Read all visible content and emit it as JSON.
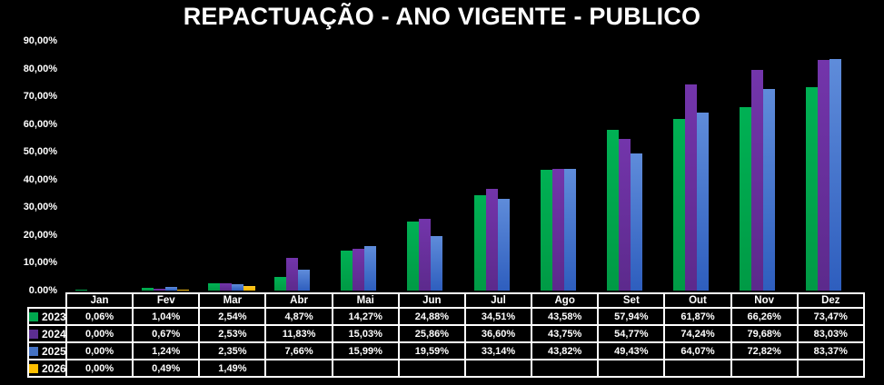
{
  "title": "REPACTUAÇÃO - ANO VIGENTE - PUBLICO",
  "colors": {
    "background": "#000000",
    "text": "#FFFFFF",
    "table_border": "#FFFFFF"
  },
  "chart_data": {
    "type": "bar",
    "title": "REPACTUAÇÃO - ANO VIGENTE - PUBLICO",
    "categories": [
      "Jan",
      "Fev",
      "Mar",
      "Abr",
      "Mai",
      "Jun",
      "Jul",
      "Ago",
      "Set",
      "Out",
      "Nov",
      "Dez"
    ],
    "series": [
      {
        "name": "2023",
        "legend_color": "#00A84E",
        "color_top": "#00B154",
        "color_bottom": "#009A45",
        "values": [
          0.06,
          1.04,
          2.54,
          4.87,
          14.27,
          24.88,
          34.51,
          43.58,
          57.94,
          61.87,
          66.26,
          73.47
        ],
        "labels": [
          "0,06%",
          "1,04%",
          "2,54%",
          "4,87%",
          "14,27%",
          "24,88%",
          "34,51%",
          "43,58%",
          "57,94%",
          "61,87%",
          "66,26%",
          "73,47%"
        ]
      },
      {
        "name": "2024",
        "legend_color": "#5C2D91",
        "color_top": "#7335AB",
        "color_bottom": "#5C2A8C",
        "values": [
          0.0,
          0.67,
          2.53,
          11.83,
          15.03,
          25.86,
          36.6,
          43.75,
          54.77,
          74.24,
          79.68,
          83.03
        ],
        "labels": [
          "0,00%",
          "0,67%",
          "2,53%",
          "11,83%",
          "15,03%",
          "25,86%",
          "36,60%",
          "43,75%",
          "54,77%",
          "74,24%",
          "79,68%",
          "83,03%"
        ]
      },
      {
        "name": "2025",
        "legend_color": "#4472C4",
        "color_top": "#5F8CDA",
        "color_bottom": "#2E5EBE",
        "values": [
          0.0,
          1.24,
          2.35,
          7.66,
          15.99,
          19.59,
          33.14,
          43.82,
          49.43,
          64.07,
          72.82,
          83.37
        ],
        "labels": [
          "0,00%",
          "1,24%",
          "2,35%",
          "7,66%",
          "15,99%",
          "19,59%",
          "33,14%",
          "43,82%",
          "49,43%",
          "64,07%",
          "72,82%",
          "83,37%"
        ]
      },
      {
        "name": "2026",
        "legend_color": "#FFC000",
        "color_top": "#FFC927",
        "color_bottom": "#F3B500",
        "values": [
          0.0,
          0.49,
          1.49,
          null,
          null,
          null,
          null,
          null,
          null,
          null,
          null,
          null
        ],
        "labels": [
          "0,00%",
          "0,49%",
          "1,49%",
          "",
          "",
          "",
          "",
          "",
          "",
          "",
          "",
          ""
        ]
      }
    ],
    "ylim": [
      0,
      90
    ],
    "y_tick_labels": [
      "90,00%",
      "80,00%",
      "70,00%",
      "60,00%",
      "50,00%",
      "40,00%",
      "30,00%",
      "20,00%",
      "10,00%",
      "0,00%"
    ],
    "grid": false,
    "legend_position": "table-row-headers"
  }
}
